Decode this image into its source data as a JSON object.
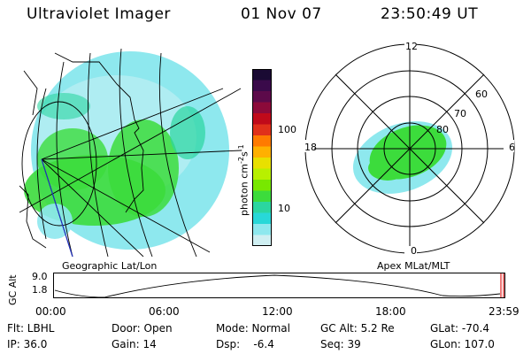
{
  "header": {
    "instrument": "Ultraviolet Imager",
    "date": "01 Nov 07",
    "time": "23:50:49 UT"
  },
  "panels": {
    "geo_caption": "Geographic Lat/Lon",
    "apex_caption": "Apex MLat/MLT"
  },
  "colorbar": {
    "label_main": "photon cm",
    "label_sup1": "-2",
    "label_s": "s",
    "label_sup2": "-1",
    "tick_100": "100",
    "tick_10": "10",
    "colors_top_to_bottom": [
      "#1a0a33",
      "#3a0a4a",
      "#5c0a4a",
      "#8c0a3a",
      "#c00a1a",
      "#e0301a",
      "#ff7a00",
      "#ffb000",
      "#e8e000",
      "#b8f000",
      "#78e800",
      "#3cdc3c",
      "#2bd6a0",
      "#28d8d8",
      "#8ee8ee",
      "#cfeff2"
    ]
  },
  "polar": {
    "mlt_12": "12",
    "mlt_18": "18",
    "mlt_6": "6",
    "mlt_0": "0",
    "lat_60": "60",
    "lat_70": "70",
    "lat_80": "80"
  },
  "orbit": {
    "axis_label": "GC Alt",
    "y_top": "9.0",
    "y_bottom": "1.8",
    "x_ticks": [
      "00:00",
      "06:00",
      "12:00",
      "18:00",
      "23:59"
    ]
  },
  "footer": {
    "flt": "Flt: LBHL",
    "ip": "IP: 36.0",
    "door": "Door: Open",
    "gain": "Gain: 14",
    "mode": "Mode: Normal",
    "dsp": "Dsp:    -6.4",
    "gc_alt": "GC Alt: 5.2 Re",
    "seq": "Seq: 39",
    "glat": "GLat: -70.4",
    "glon": "GLon: 107.0"
  }
}
